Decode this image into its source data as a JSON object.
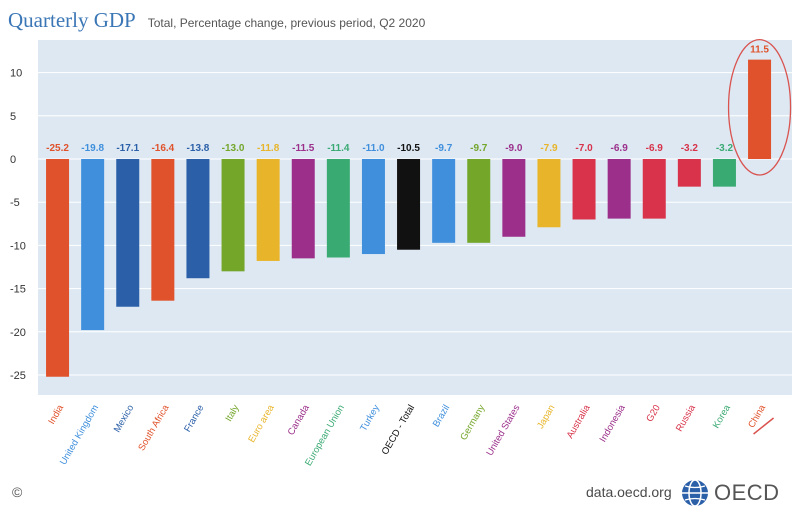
{
  "header": {
    "title": "Quarterly GDP",
    "subtitle": "Total, Percentage change, previous period, Q2 2020"
  },
  "footer": {
    "copyright": "©",
    "url": "data.oecd.org",
    "logo_text": "OECD"
  },
  "colors": {
    "panel_bg": "#dde8f3",
    "grid": "#ffffff",
    "highlight": "#d9534f"
  },
  "chart_data": {
    "type": "bar",
    "title": "Quarterly GDP",
    "subtitle": "Total, Percentage change, previous period, Q2 2020",
    "xlabel": "",
    "ylabel": "",
    "ylim": [
      -27.5,
      12.5
    ],
    "yticks": [
      10,
      5,
      0,
      -5,
      -10,
      -15,
      -20,
      -25
    ],
    "grid": true,
    "highlighted_category": "China",
    "categories": [
      "India",
      "United Kingdom",
      "Mexico",
      "South Africa",
      "France",
      "Italy",
      "Euro area",
      "Canada",
      "European Union",
      "Turkey",
      "OECD - Total",
      "Brazil",
      "Germany",
      "United States",
      "Japan",
      "Australia",
      "Indonesia",
      "G20",
      "Russia",
      "Korea",
      "China"
    ],
    "values": [
      -25.2,
      -19.8,
      -17.1,
      -16.4,
      -13.8,
      -13.0,
      -11.8,
      -11.5,
      -11.4,
      -11.0,
      -10.5,
      -9.7,
      -9.7,
      -9.0,
      -7.9,
      -7.0,
      -6.9,
      -6.9,
      -3.2,
      -3.2,
      11.5
    ],
    "value_labels": [
      "-25.2",
      "-19.8",
      "-17.1",
      "-16.4",
      "-13.8",
      "-13.0",
      "-11.8",
      "-11.5",
      "-11.4",
      "-11.0",
      "-10.5",
      "-9.7",
      "-9.7",
      "-9.0",
      "-7.9",
      "-7.0",
      "-6.9",
      "-6.9",
      "-3.2",
      "-3.2",
      "11.5"
    ],
    "bar_colors": [
      "#e0522b",
      "#3f8fdc",
      "#2b5fa8",
      "#e0522b",
      "#2b5fa8",
      "#74a62a",
      "#e8b52a",
      "#9b2f8a",
      "#3aaa73",
      "#3f8fdc",
      "#111111",
      "#3f8fdc",
      "#74a62a",
      "#9b2f8a",
      "#e8b52a",
      "#d8334a",
      "#9b2f8a",
      "#d8334a",
      "#d8334a",
      "#3aaa73",
      "#e0522b"
    ],
    "label_colors": [
      "#e0522b",
      "#3f8fdc",
      "#2b5fa8",
      "#e0522b",
      "#2b5fa8",
      "#74a62a",
      "#e8b52a",
      "#9b2f8a",
      "#3aaa73",
      "#3f8fdc",
      "#111111",
      "#3f8fdc",
      "#74a62a",
      "#9b2f8a",
      "#e8b52a",
      "#d8334a",
      "#9b2f8a",
      "#d8334a",
      "#d8334a",
      "#3aaa73",
      "#e0522b"
    ]
  }
}
